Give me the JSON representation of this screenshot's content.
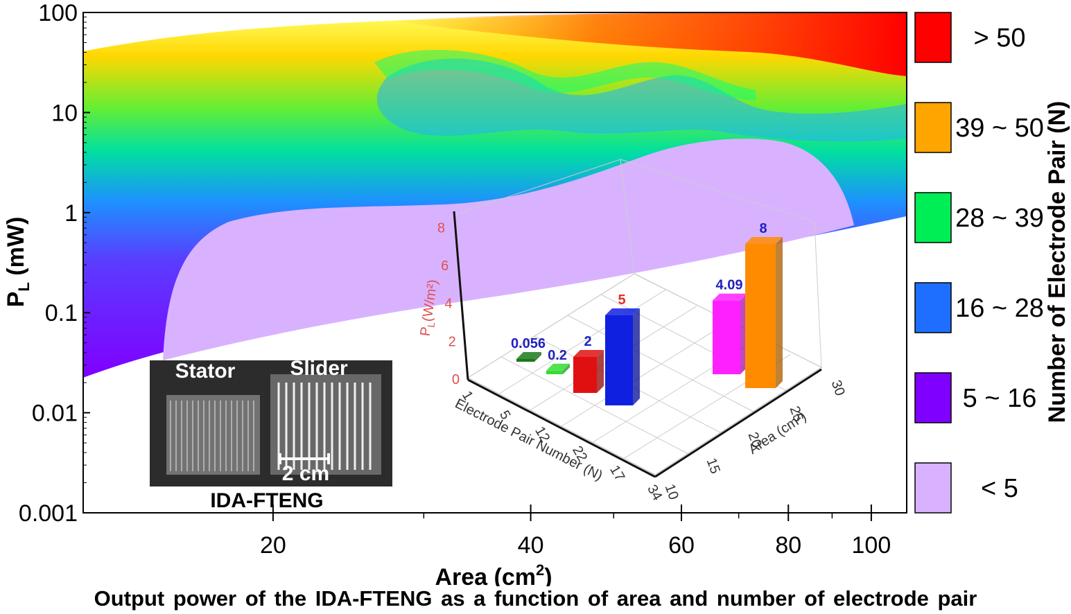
{
  "chart_data": {
    "type": "contour",
    "xlabel": "Area (cm",
    "xlabel_sup": "2",
    "xlabel_close": ")",
    "ylabel": "P",
    "ylabel_sub": "L",
    "ylabel_unit": " (mW)",
    "x_scale": "log",
    "y_scale": "log",
    "xlim": [
      12,
      110
    ],
    "ylim": [
      0.001,
      100
    ],
    "x_ticks": [
      20,
      40,
      60,
      80,
      100
    ],
    "x_tick_labels": [
      "20",
      "40",
      "60",
      "80",
      "100"
    ],
    "y_ticks": [
      100,
      10,
      1,
      0.1,
      0.01,
      0.001
    ],
    "y_tick_labels": [
      "100",
      "10",
      "1",
      "0.1",
      "0.01",
      "0.001"
    ],
    "legend_title": "Number of Electrode Pair (N)",
    "legend_position": "right",
    "legend": [
      {
        "label": "> 50",
        "color": "#ff0000"
      },
      {
        "label": "39 ~ 50",
        "color": "#ffa500"
      },
      {
        "label": "28 ~ 39",
        "color": "#00ee55"
      },
      {
        "label": "16 ~ 28",
        "color": "#1e6fff"
      },
      {
        "label": "5   ~ 16",
        "color": "#8000ff"
      },
      {
        "label": "< 5",
        "color": "#d9b2ff"
      }
    ],
    "inset_bar3d": {
      "type": "bar3d",
      "zlabel": "P",
      "zlabel_sub": "L",
      "zlabel_unit": "(W/m²)",
      "xlabel": "Electrode Pair Number (N)",
      "ylabel": "Area (cm²)",
      "z_ticks": [
        "0",
        "2",
        "4",
        "6",
        "8"
      ],
      "n_ticks": [
        "1",
        "5",
        "12",
        "22",
        "17",
        "34"
      ],
      "area_ticks": [
        "10",
        "15",
        "20",
        "25",
        "30"
      ],
      "bars": [
        {
          "label": "0.056",
          "value": 0.056,
          "color": "#1a7a1a"
        },
        {
          "label": "0.2",
          "value": 0.2,
          "color": "#33dd33"
        },
        {
          "label": "2",
          "value": 2,
          "color": "#e01010"
        },
        {
          "label": "5",
          "value": 5,
          "color": "#1020e0"
        },
        {
          "label": "4.09",
          "value": 4.09,
          "color": "#ff20ff"
        },
        {
          "label": "8",
          "value": 8,
          "color": "#ff8c00"
        }
      ]
    }
  },
  "inset_photo": {
    "stator_label": "Stator",
    "slider_label": "Slider",
    "scale_label": "2 cm",
    "device_label": "IDA-FTENG"
  },
  "caption": "Output power of the IDA-FTENG as a function of area and number of electrode pair"
}
